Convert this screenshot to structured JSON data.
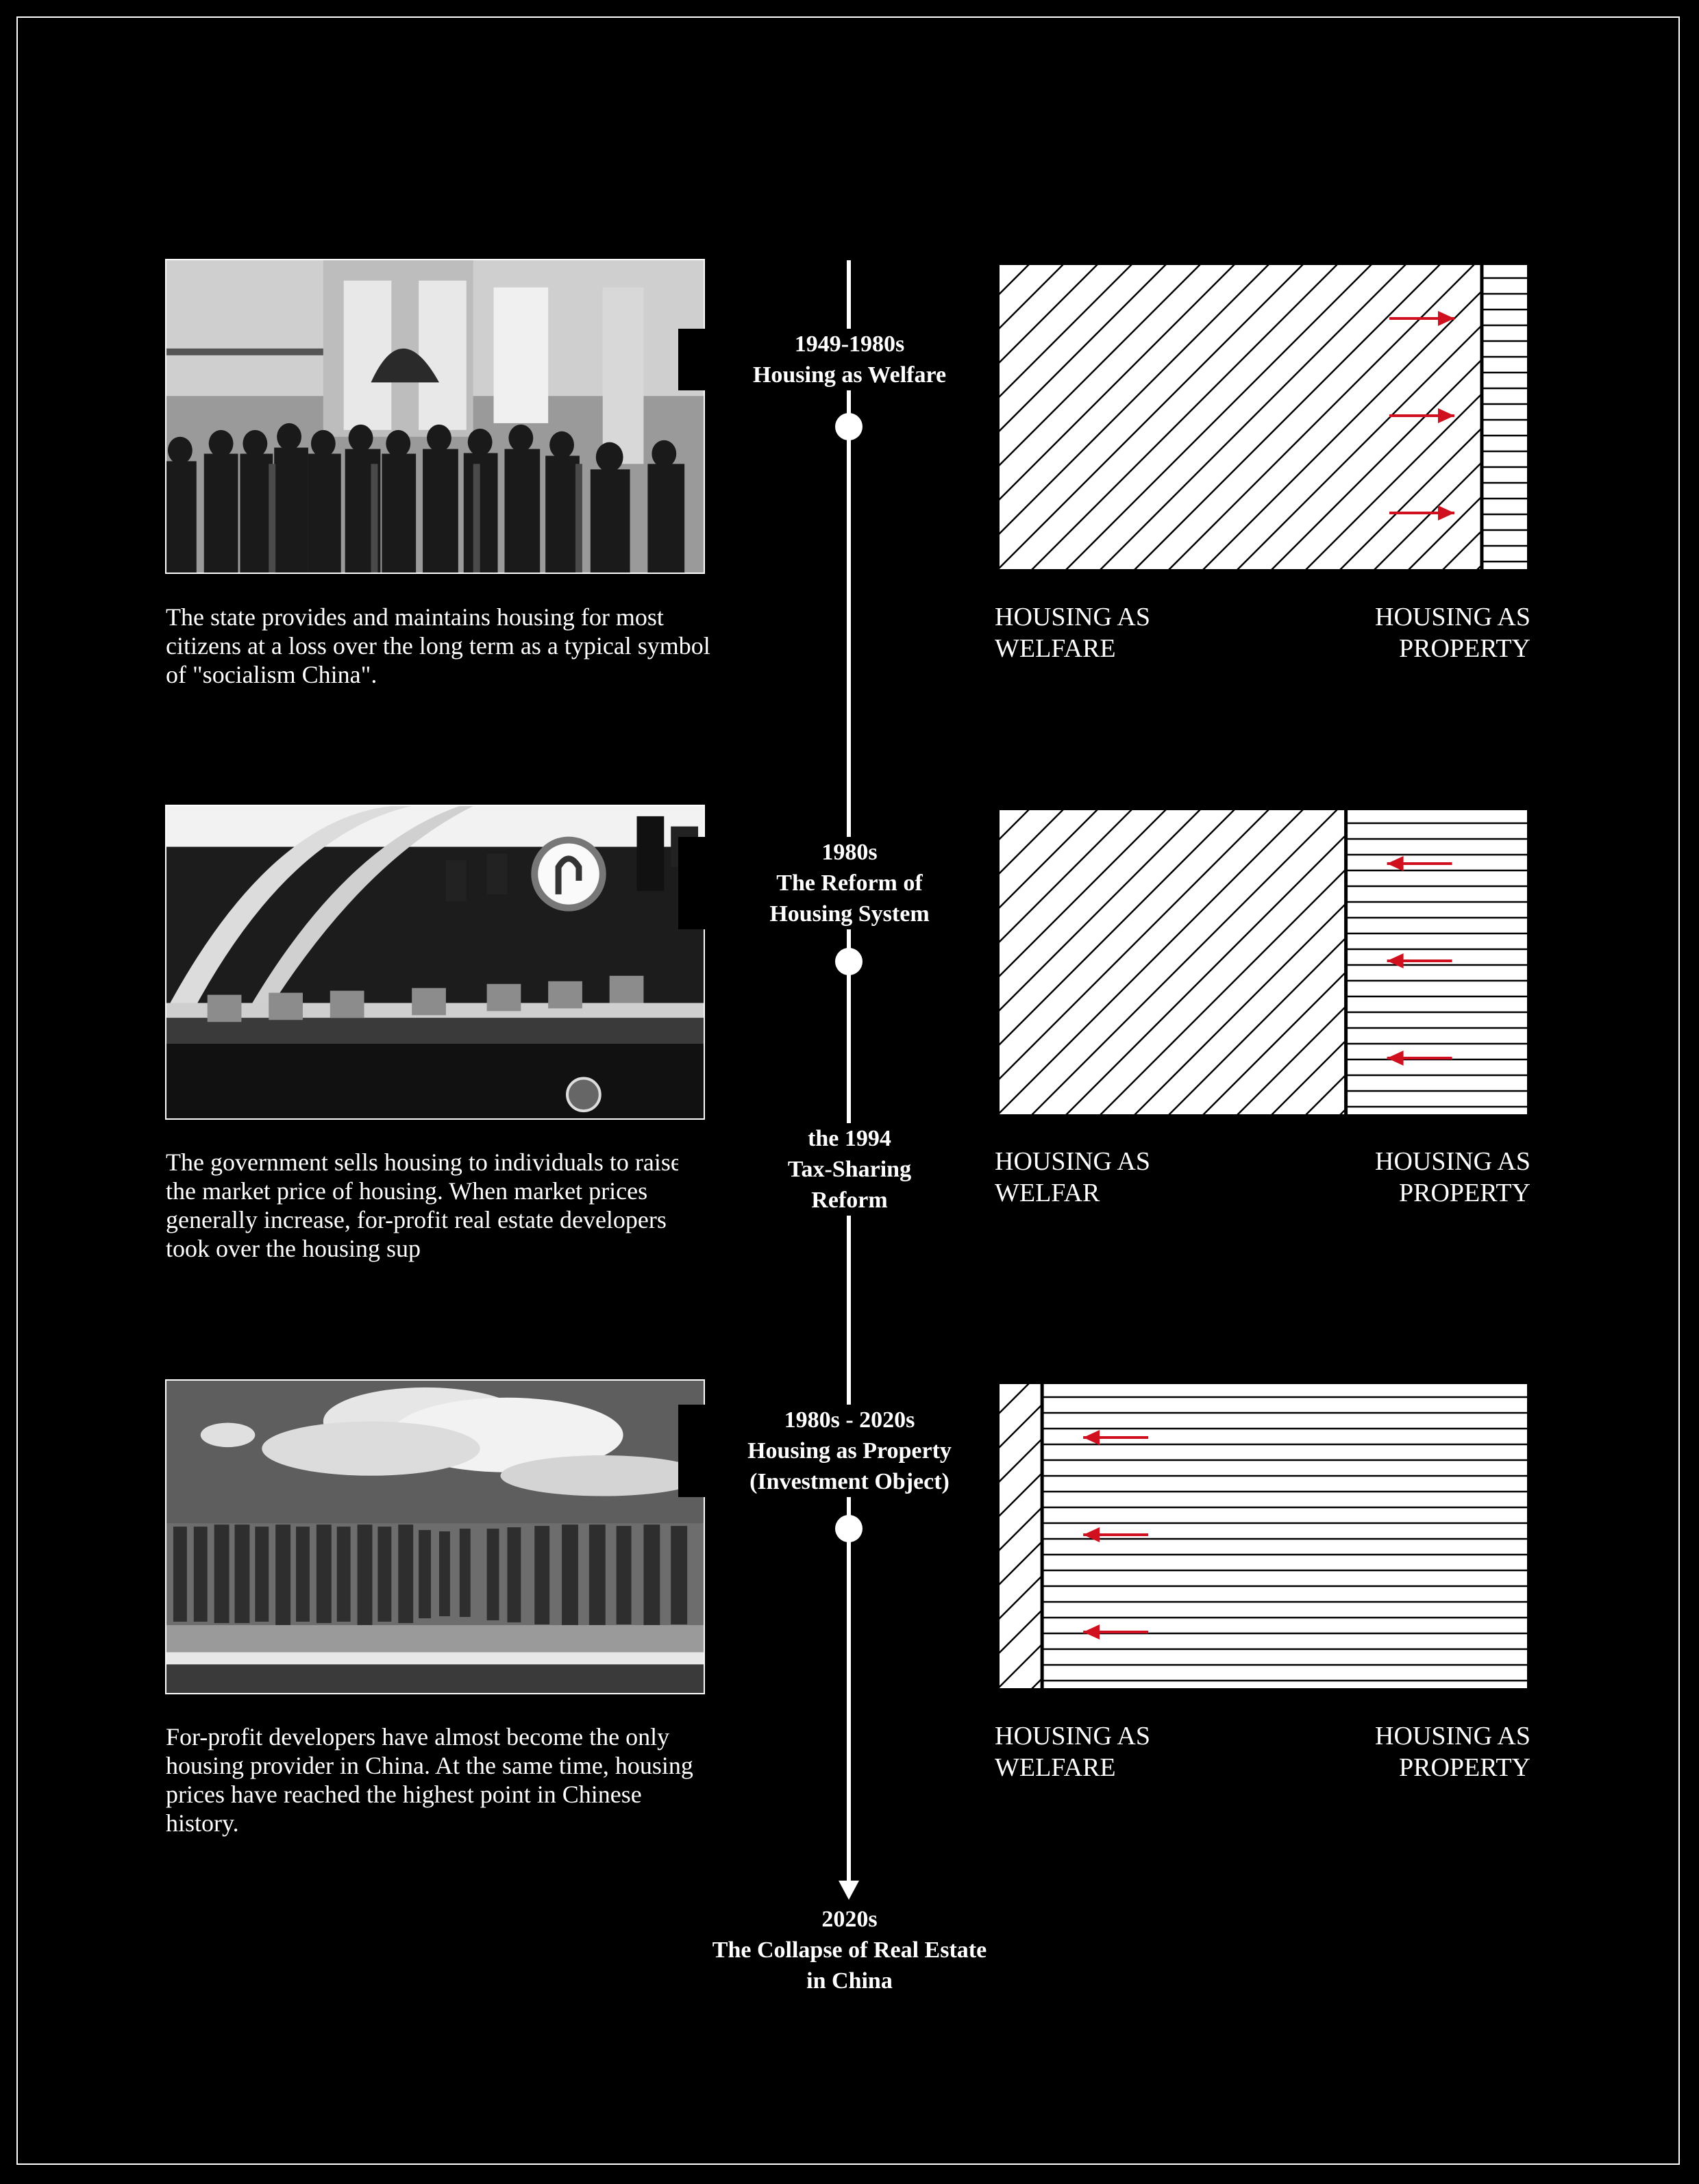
{
  "stages": [
    {
      "period": "1949-1980s",
      "title": "Housing as Welfare",
      "description": "The state provides and maintains housing for most citizens at a loss over the long term as a typical symbol of \"socialism China\".",
      "welfare_share": 0.91,
      "arrow_direction": "right",
      "welfare_label": [
        "HOUSING AS",
        "WELFARE"
      ],
      "property_label": [
        "HOUSING AS",
        "PROPERTY"
      ]
    },
    {
      "period": "1980s",
      "title": "The Reform of Housing System",
      "description": "The government sells housing to individuals to raise the market price of housing. When market prices generally increase, for-profit real estate developers took over the housing sup",
      "welfare_share": 0.655,
      "arrow_direction": "left",
      "welfare_label": [
        "HOUSING AS",
        "WELFAR"
      ],
      "property_label": [
        "HOUSING AS",
        "PROPERTY"
      ]
    },
    {
      "period": "1980s - 2020s",
      "title": "Housing as Property (Investment Object)",
      "description": "For-profit developers have almost become the only housing provider in China. At the same time, housing prices have reached the highest point in Chinese history.",
      "welfare_share": 0.085,
      "arrow_direction": "left",
      "welfare_label": [
        "HOUSING AS",
        "WELFARE"
      ],
      "property_label": [
        "HOUSING AS",
        "PROPERTY"
      ]
    }
  ],
  "timeline": {
    "stage1": [
      "1949-1980s",
      "Housing as Welfare"
    ],
    "stage2": [
      "1980s",
      "The Reform of",
      "Housing System"
    ],
    "reform": [
      "the 1994",
      "Tax-Sharing",
      "Reform"
    ],
    "stage3": [
      "1980s - 2020s",
      "Housing as Property",
      "(Investment Object)"
    ],
    "end": [
      "2020s",
      "The Collapse of Real Estate",
      "in China"
    ]
  },
  "colors": {
    "background": "#000000",
    "foreground": "#ffffff",
    "arrow": "#d0101e"
  }
}
